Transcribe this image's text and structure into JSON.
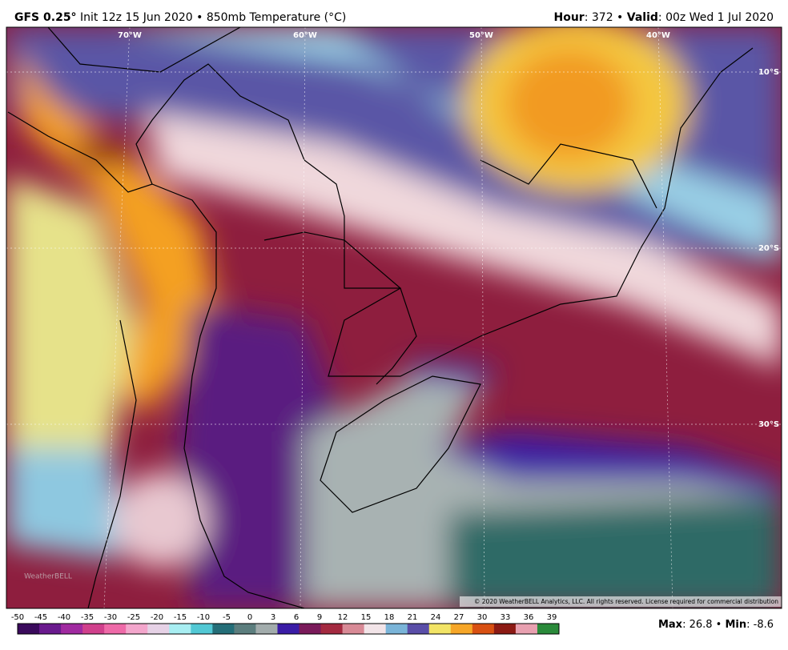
{
  "header": {
    "model": "GFS 0.25°",
    "run": "Init 12z 15 Jun 2020 • 850mb Temperature (°C)",
    "hour_label": "Hour",
    "hour_value": ": 372 • ",
    "valid_label": "Valid",
    "valid_value": ": 00z Wed 1 Jul 2020"
  },
  "map": {
    "longitudes": [
      "70°W",
      "60°W",
      "50°W",
      "40°W"
    ],
    "latitudes": [
      "10°S",
      "20°S",
      "30°S"
    ],
    "copyright": "© 2020 WeatherBELL Analytics, LLC. All rights reserved. License required for commercial distribution",
    "logo": "WeatherBELL"
  },
  "colorbar": {
    "labels": [
      "-50",
      "-45",
      "-40",
      "-35",
      "-30",
      "-25",
      "-20",
      "-15",
      "-10",
      "-5",
      "0",
      "3",
      "6",
      "9",
      "12",
      "15",
      "18",
      "21",
      "24",
      "27",
      "30",
      "33",
      "36",
      "39"
    ],
    "colors": [
      "#3a0a5c",
      "#6a1a8e",
      "#a02aa0",
      "#d0408c",
      "#ee6aa8",
      "#f3a6cc",
      "#e6d2e6",
      "#a8eef2",
      "#52c8d4",
      "#246e78",
      "#5c7e7e",
      "#a2acac",
      "#3a1ca6",
      "#7a1a5a",
      "#a42a40",
      "#d88a96",
      "#f2e4e8",
      "#7ab4d8",
      "#5a4ea8",
      "#f2e466",
      "#f6a628",
      "#d85012",
      "#8c1a14",
      "#e8a0b0",
      "#2a8a3a"
    ]
  },
  "stats": {
    "max_label": "Max",
    "max_value": ": 26.8 • ",
    "min_label": "Min",
    "min_value": ": -8.6"
  }
}
